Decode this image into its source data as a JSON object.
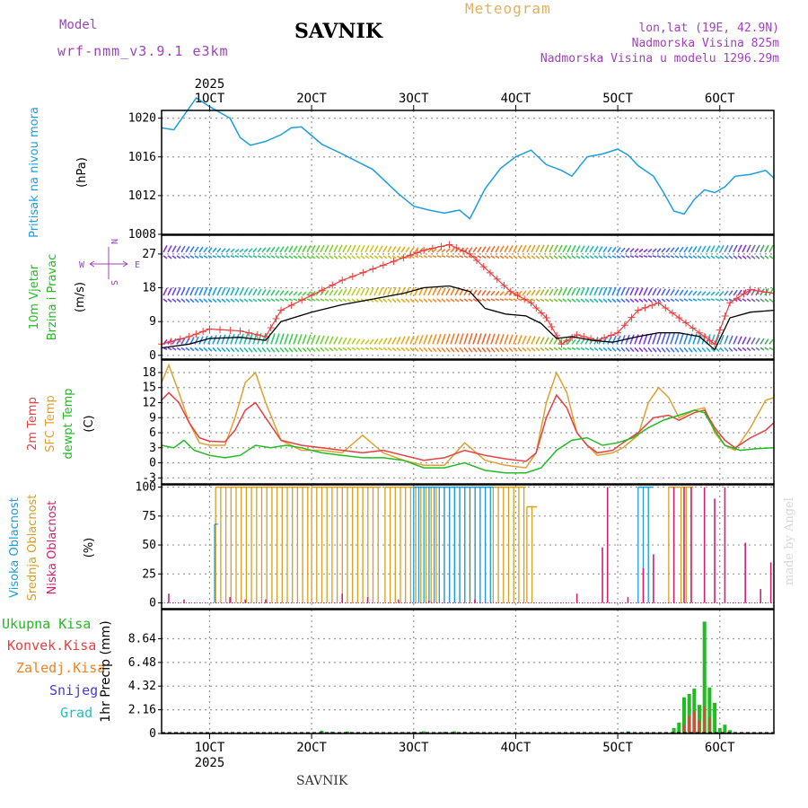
{
  "header": {
    "model_label": "Model",
    "model_name": "wrf-nmm_v3.9.1 e3km",
    "location": "SAVNIK",
    "title": "Meteogram",
    "coords": "lon,lat (19E, 42.9N)",
    "elevation": "Nadmorska Visina 825m",
    "model_elevation": "Nadmorska Visina u modelu 1296.29m"
  },
  "footer": {
    "location": "SAVNIK",
    "credit": "made by Angel"
  },
  "colors": {
    "pressure": "#1a9ee0",
    "wind_label": "#22bb22",
    "temp2m": "#e84040",
    "sfc": "#e0a030",
    "dewpt": "#22bb22",
    "visoka": "#1a9ee0",
    "srednja": "#d4a020",
    "niska": "#d02070",
    "ukupna": "#22bb22",
    "konvek": "#e84040",
    "zaledj": "#f08020",
    "snijeg": "#4040d0",
    "grad": "#20c0c0",
    "header_violet": "#a040c0",
    "title_gold": "#e0b060"
  },
  "chart_data": {
    "type": "line",
    "time_axis": {
      "year": "2025",
      "ticks": [
        "1OCT",
        "2OCT",
        "3OCT",
        "4OCT",
        "5OCT",
        "6OCT"
      ],
      "tick_days": [
        1,
        2,
        3,
        4,
        5,
        6
      ],
      "range_days": [
        0.53,
        6.53
      ]
    },
    "panels": [
      {
        "id": "pressure",
        "ylabel": [
          "Pritisak na nivou mora",
          "(hPa)"
        ],
        "yticks": [
          "1008",
          "1012",
          "1016",
          "1020"
        ],
        "ylim": [
          1008,
          1020.8
        ],
        "series": [
          {
            "name": "Pritisak na nivou mora",
            "x": [
              0.53,
              0.65,
              0.75,
              0.87,
              1.0,
              1.1,
              1.2,
              1.3,
              1.4,
              1.55,
              1.7,
              1.8,
              1.9,
              2.0,
              2.1,
              2.3,
              2.6,
              2.85,
              3.0,
              3.15,
              3.3,
              3.45,
              3.55,
              3.7,
              3.85,
              4.0,
              4.15,
              4.3,
              4.45,
              4.55,
              4.7,
              4.85,
              5.0,
              5.1,
              5.2,
              5.35,
              5.45,
              5.55,
              5.65,
              5.75,
              5.85,
              5.95,
              6.05,
              6.15,
              6.3,
              6.45,
              6.53
            ],
            "y": [
              1019.0,
              1018.8,
              1020.3,
              1022.1,
              1021.2,
              1020.6,
              1020.0,
              1018.0,
              1017.2,
              1017.6,
              1018.3,
              1019.0,
              1019.1,
              1018.2,
              1017.3,
              1016.3,
              1014.7,
              1012.2,
              1010.9,
              1010.5,
              1010.2,
              1010.5,
              1009.6,
              1012.7,
              1014.8,
              1016.0,
              1016.7,
              1015.2,
              1014.6,
              1014.0,
              1016.0,
              1016.3,
              1016.8,
              1016.2,
              1015.1,
              1014.0,
              1012.3,
              1010.4,
              1010.1,
              1011.6,
              1012.6,
              1012.3,
              1012.9,
              1014.0,
              1014.2,
              1014.6,
              1013.8
            ]
          }
        ]
      },
      {
        "id": "wind",
        "ylabel": [
          "10m Vjetar",
          "Brzina i Pravac",
          "(m/s)"
        ],
        "compass": {
          "n": "N",
          "s": "S",
          "w": "W",
          "e": "E"
        },
        "yticks": [
          "0",
          "9",
          "18",
          "27"
        ],
        "ylim": [
          -1,
          32
        ],
        "series": [
          {
            "name": "Brzina (avg)",
            "x": [
              0.53,
              0.8,
              1.0,
              1.3,
              1.55,
              1.7,
              2.0,
              2.3,
              2.6,
              2.9,
              3.1,
              3.35,
              3.55,
              3.7,
              3.9,
              4.1,
              4.25,
              4.4,
              4.55,
              4.75,
              4.95,
              5.2,
              5.4,
              5.6,
              5.8,
              5.95,
              6.1,
              6.3,
              6.53
            ],
            "y": [
              2.0,
              3.0,
              4.5,
              4.8,
              4.0,
              9.0,
              11.5,
              13.5,
              15.0,
              16.5,
              18.0,
              18.5,
              17.0,
              12.5,
              11.0,
              10.5,
              8.5,
              4.5,
              5.0,
              4.0,
              3.5,
              5.0,
              6.0,
              6.0,
              5.0,
              1.5,
              10.0,
              11.5,
              12.0
            ]
          },
          {
            "name": "Brzina (udari)",
            "x": [
              0.53,
              0.8,
              1.0,
              1.3,
              1.55,
              1.7,
              2.0,
              2.3,
              2.6,
              2.9,
              3.1,
              3.35,
              3.55,
              3.75,
              3.95,
              4.15,
              4.3,
              4.45,
              4.6,
              4.8,
              5.0,
              5.2,
              5.4,
              5.6,
              5.8,
              5.95,
              6.1,
              6.3,
              6.53
            ],
            "y": [
              3.0,
              5.0,
              7.0,
              6.5,
              5.0,
              12.0,
              16.0,
              20.0,
              23.0,
              26.0,
              28.0,
              29.5,
              27.0,
              22.0,
              17.0,
              14.0,
              10.0,
              3.0,
              5.5,
              4.0,
              6.0,
              12.0,
              14.0,
              10.0,
              6.0,
              3.0,
              14.0,
              17.5,
              16.5
            ]
          }
        ]
      },
      {
        "id": "temperature",
        "ylabel": [
          "2m Temp",
          "SFC Temp",
          "dewpt Temp",
          "(C)"
        ],
        "yticks": [
          "-3",
          "0",
          "3",
          "6",
          "9",
          "12",
          "15",
          "18"
        ],
        "ylim": [
          -4.2,
          20.5
        ],
        "series": [
          {
            "name": "2m Temp",
            "x": [
              0.53,
              0.6,
              0.7,
              0.8,
              0.9,
              1.0,
              1.15,
              1.25,
              1.35,
              1.45,
              1.55,
              1.7,
              1.9,
              2.1,
              2.3,
              2.5,
              2.7,
              2.9,
              3.1,
              3.3,
              3.5,
              3.7,
              3.9,
              4.1,
              4.2,
              4.3,
              4.4,
              4.5,
              4.6,
              4.7,
              4.8,
              4.95,
              5.05,
              5.2,
              5.35,
              5.5,
              5.6,
              5.75,
              5.85,
              5.95,
              6.05,
              6.15,
              6.3,
              6.45,
              6.53
            ],
            "y": [
              12.5,
              14.0,
              12.0,
              8.0,
              5.0,
              4.3,
              4.2,
              6.5,
              10.5,
              12.0,
              9.0,
              4.5,
              3.5,
              3.0,
              2.5,
              2.0,
              2.5,
              1.5,
              0.5,
              1.0,
              2.5,
              1.5,
              0.8,
              0.3,
              2.0,
              9.0,
              13.5,
              11.0,
              6.0,
              3.5,
              2.0,
              2.5,
              4.0,
              6.0,
              9.0,
              9.5,
              8.5,
              10.0,
              10.5,
              7.0,
              4.5,
              3.0,
              5.0,
              6.5,
              8.0
            ]
          },
          {
            "name": "SFC Temp",
            "x": [
              0.53,
              0.6,
              0.7,
              0.8,
              0.9,
              1.0,
              1.15,
              1.25,
              1.35,
              1.45,
              1.55,
              1.7,
              1.9,
              2.1,
              2.3,
              2.5,
              2.7,
              2.9,
              3.1,
              3.3,
              3.5,
              3.7,
              3.9,
              4.1,
              4.2,
              4.3,
              4.4,
              4.5,
              4.6,
              4.7,
              4.8,
              4.95,
              5.05,
              5.2,
              5.3,
              5.4,
              5.5,
              5.6,
              5.75,
              5.85,
              5.95,
              6.05,
              6.15,
              6.3,
              6.45,
              6.53
            ],
            "y": [
              16.0,
              19.5,
              14.0,
              8.0,
              4.0,
              3.5,
              3.5,
              9.0,
              16.0,
              18.0,
              12.0,
              4.5,
              2.5,
              2.5,
              2.0,
              5.5,
              2.0,
              0.5,
              -0.5,
              -0.5,
              4.0,
              0.5,
              -0.5,
              -1.0,
              2.0,
              12.0,
              18.0,
              14.0,
              6.0,
              3.5,
              1.5,
              2.0,
              3.0,
              5.5,
              12.0,
              15.0,
              13.0,
              9.0,
              10.5,
              11.0,
              6.0,
              3.5,
              2.5,
              7.0,
              12.5,
              13.0
            ]
          },
          {
            "name": "dewpt Temp",
            "x": [
              0.53,
              0.65,
              0.75,
              0.85,
              1.0,
              1.15,
              1.3,
              1.45,
              1.6,
              1.75,
              1.9,
              2.1,
              2.3,
              2.5,
              2.7,
              2.9,
              3.1,
              3.3,
              3.5,
              3.7,
              3.9,
              4.1,
              4.25,
              4.4,
              4.55,
              4.7,
              4.85,
              5.0,
              5.15,
              5.3,
              5.45,
              5.6,
              5.75,
              5.85,
              5.95,
              6.05,
              6.2,
              6.35,
              6.53
            ],
            "y": [
              3.5,
              3.0,
              4.5,
              2.5,
              1.5,
              1.0,
              1.5,
              3.5,
              3.0,
              3.5,
              3.0,
              2.0,
              1.5,
              1.0,
              1.0,
              0.5,
              -1.0,
              -1.0,
              0.0,
              -1.5,
              -2.0,
              -2.0,
              -1.0,
              2.5,
              4.5,
              5.0,
              3.5,
              4.0,
              5.0,
              7.0,
              8.5,
              9.5,
              10.5,
              10.0,
              6.5,
              3.5,
              2.5,
              2.8,
              3.0
            ]
          }
        ]
      },
      {
        "id": "clouds",
        "ylabel": [
          "Visoka Oblacnost",
          "Srednja Oblacnost",
          "Niska Oblacnost",
          "(%)"
        ],
        "yticks": [
          "0",
          "25",
          "50",
          "75",
          "100"
        ],
        "ylim": [
          -5,
          102
        ],
        "series": [
          {
            "name": "Srednja Oblacnost (blocks)",
            "x_start": [
              1.06,
              2.0,
              2.72,
              3.3,
              3.78,
              4.11,
              5.5,
              5.62
            ],
            "x_end": [
              1.98,
              2.68,
              3.25,
              3.75,
              4.1,
              4.21,
              5.6,
              5.74
            ],
            "values": [
              100,
              100,
              100,
              100,
              100,
              83,
              100,
              100
            ]
          },
          {
            "name": "Visoka Oblacnost (blocks)",
            "x_start": [
              1.05,
              3.0,
              5.2
            ],
            "x_end": [
              1.08,
              3.78,
              5.35
            ],
            "values": [
              68,
              100,
              100
            ]
          },
          {
            "name": "Niska Oblacnost (bars)",
            "x": [
              0.6,
              0.75,
              1.2,
              1.35,
              1.55,
              2.3,
              2.55,
              2.85,
              3.15,
              3.6,
              4.6,
              4.85,
              4.9,
              5.1,
              5.25,
              5.35,
              5.55,
              5.65,
              5.72,
              5.85,
              5.95,
              6.05,
              6.25,
              6.4,
              6.5
            ],
            "values": [
              8,
              3,
              5,
              3,
              3,
              8,
              5,
              3,
              2,
              3,
              8,
              48,
              100,
              5,
              30,
              42,
              100,
              100,
              100,
              100,
              90,
              100,
              52,
              12,
              35
            ]
          }
        ]
      },
      {
        "id": "precip",
        "ylabel": [
          "Ukupna Kisa",
          "Konvek.Kisa",
          "Zaledj.Kisa",
          "Snijeg",
          "Grad",
          "1hr Precip (mm)"
        ],
        "yticks": [
          "0",
          "2.16",
          "4.32",
          "6.48",
          "8.64"
        ],
        "ylim": [
          0,
          11.3
        ],
        "series": [
          {
            "name": "Ukupna Kisa",
            "x": [
              2.1,
              2.2,
              2.35,
              2.9,
              3.0,
              3.1,
              3.2,
              3.3,
              3.4,
              3.5,
              3.6,
              5.1,
              5.55,
              5.6,
              5.65,
              5.7,
              5.75,
              5.8,
              5.85,
              5.9,
              5.95,
              6.0,
              6.05,
              6.1
            ],
            "y": [
              0.25,
              0.15,
              0.18,
              0.12,
              0.15,
              0.2,
              0.1,
              0.15,
              0.2,
              0.15,
              0.1,
              0.2,
              0.5,
              1.0,
              3.3,
              3.6,
              4.1,
              2.6,
              10.2,
              4.2,
              2.8,
              0.5,
              0.8,
              0.3
            ]
          },
          {
            "name": "Konvek.Kisa",
            "x": [
              5.65,
              5.7,
              5.75,
              5.8,
              5.85,
              5.9
            ],
            "y": [
              0.8,
              1.6,
              2.0,
              1.2,
              2.5,
              1.5
            ]
          }
        ]
      }
    ]
  }
}
